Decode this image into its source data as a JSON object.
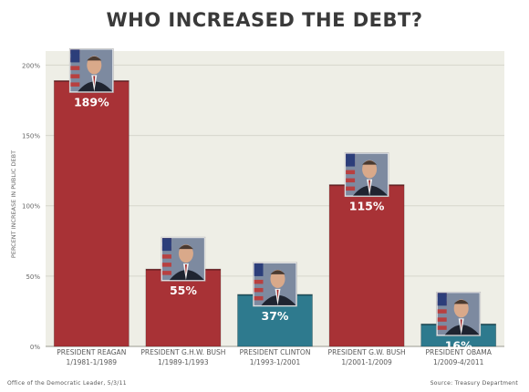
{
  "chart_data": {
    "type": "bar",
    "title": "WHO INCREASED THE DEBT?",
    "ylabel": "PERCENT INCREASE IN PUBLIC DEBT",
    "xlabel": "",
    "ylim": [
      0,
      210
    ],
    "yticks": [
      0,
      50,
      100,
      150,
      200
    ],
    "ytick_labels": [
      "0%",
      "50%",
      "100%",
      "150%",
      "200%"
    ],
    "grid": true,
    "categories": [
      "PRESIDENT REAGAN",
      "PRESIDENT G.H.W. BUSH",
      "PRESIDENT CLINTON",
      "PRESIDENT G.W. BUSH",
      "PRESIDENT OBAMA"
    ],
    "periods": [
      "1/1981-1/1989",
      "1/1989-1/1993",
      "1/1993-1/2001",
      "1/2001-1/2009",
      "1/2009-4/2011"
    ],
    "values": [
      189,
      55,
      37,
      115,
      16
    ],
    "value_labels": [
      "189%",
      "55%",
      "37%",
      "115%",
      "16%"
    ],
    "bar_colors": [
      "#a83236",
      "#a83236",
      "#2e7a8e",
      "#a83236",
      "#2e7a8e"
    ],
    "footer_left": "Office of the Democratic Leader, 5/3/11",
    "footer_right": "Source: Treasury Department"
  },
  "colors": {
    "plot_background": "#eeeee6",
    "gridline": "#d6d6cc",
    "republican_bar": "#a83236",
    "democratic_bar": "#2e7a8e",
    "photo_frame": "#f0f0f0"
  },
  "icons": [
    "president-portrait-icon"
  ]
}
